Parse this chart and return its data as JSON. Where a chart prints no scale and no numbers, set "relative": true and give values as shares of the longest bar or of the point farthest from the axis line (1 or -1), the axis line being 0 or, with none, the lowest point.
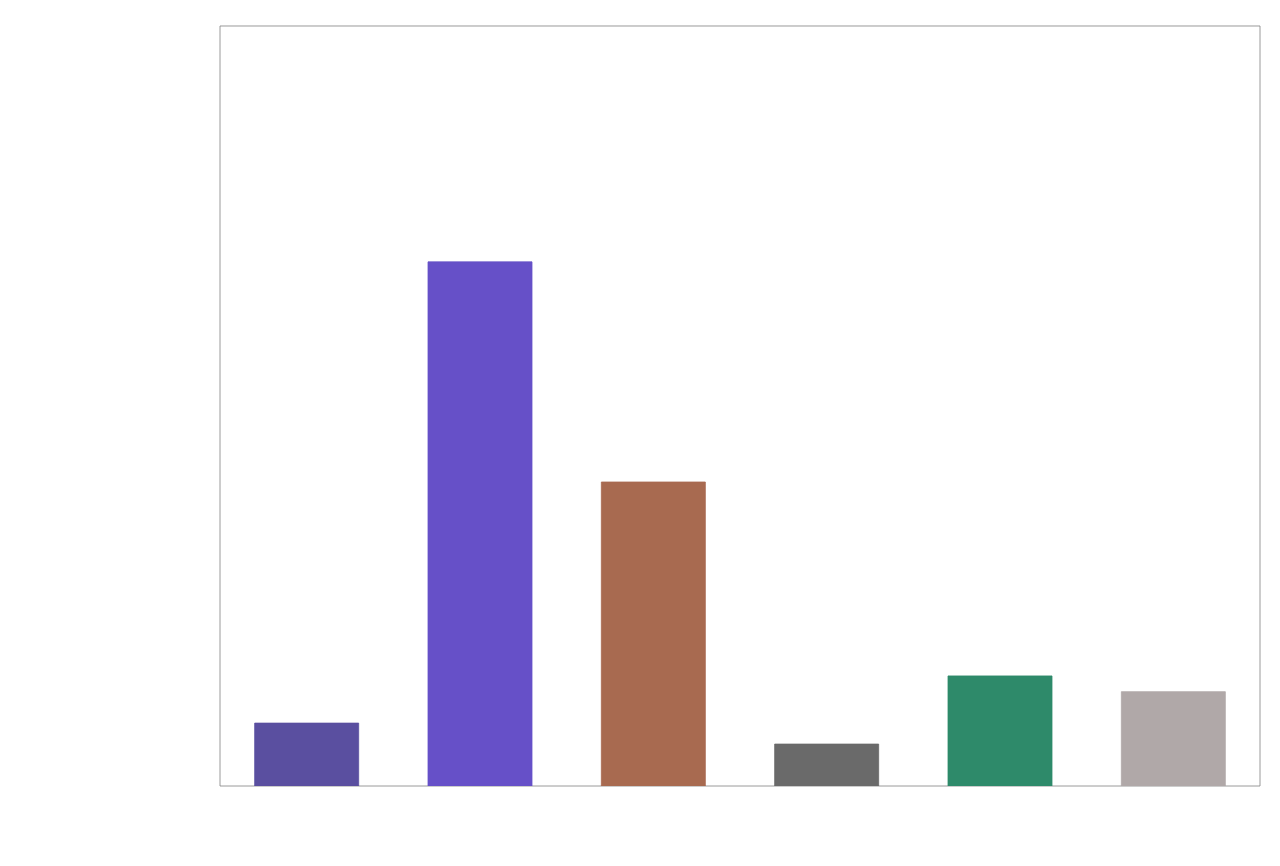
{
  "chart_data": {
    "type": "bar",
    "relative": true,
    "categories": [
      null,
      null,
      null,
      null,
      null,
      null
    ],
    "values": [
      0.12,
      1,
      0.58,
      0.08,
      0.21,
      0.18
    ],
    "colors": [
      "#5a4fa0",
      "#6650c8",
      "#a86a50",
      "#6a6a6a",
      "#2e8a6a",
      "#b0a8a8"
    ]
  }
}
